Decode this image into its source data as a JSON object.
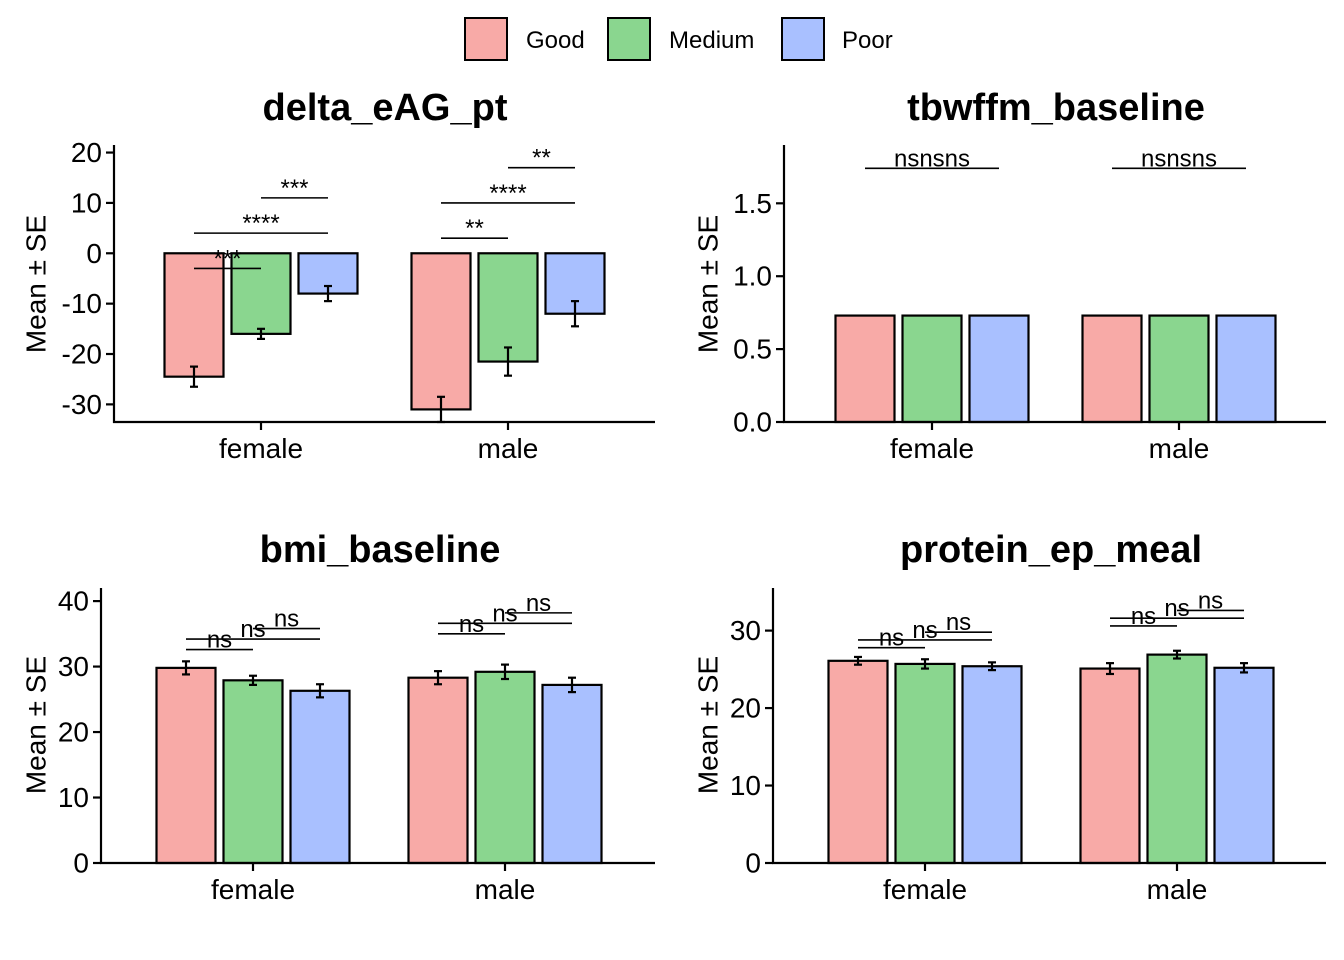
{
  "legend": {
    "items": [
      {
        "label": "Good",
        "color": "#F8AAA7"
      },
      {
        "label": "Medium",
        "color": "#8AD68F"
      },
      {
        "label": "Poor",
        "color": "#A9C0FF"
      }
    ]
  },
  "chart_data": [
    {
      "type": "bar",
      "title": "delta_eAG_pt",
      "ylabel": "Mean ± SE",
      "xlabel": "",
      "categories": [
        "female",
        "male"
      ],
      "ylim": [
        -33.5,
        21.5
      ],
      "yticks": [
        -30,
        -20,
        -10,
        0,
        10,
        20
      ],
      "series": [
        {
          "name": "Good",
          "values": [
            -24.5,
            -31
          ],
          "se": [
            2,
            2.5
          ]
        },
        {
          "name": "Medium",
          "values": [
            -16,
            -21.5
          ],
          "se": [
            1,
            2.8
          ]
        },
        {
          "name": "Poor",
          "values": [
            -8,
            -12
          ],
          "se": [
            1.5,
            2.5
          ]
        }
      ],
      "annotations": [
        {
          "cat": 0,
          "from": 0,
          "to": 1,
          "y": -3,
          "label": "***"
        },
        {
          "cat": 0,
          "from": 0,
          "to": 2,
          "y": 4,
          "label": "****"
        },
        {
          "cat": 0,
          "from": 1,
          "to": 2,
          "y": 11,
          "label": "***"
        },
        {
          "cat": 1,
          "from": 0,
          "to": 1,
          "y": 3,
          "label": "**"
        },
        {
          "cat": 1,
          "from": 0,
          "to": 2,
          "y": 10,
          "label": "****"
        },
        {
          "cat": 1,
          "from": 1,
          "to": 2,
          "y": 17,
          "label": "**"
        }
      ]
    },
    {
      "type": "bar",
      "title": "tbwffm_baseline",
      "ylabel": "Mean ± SE",
      "xlabel": "",
      "categories": [
        "female",
        "male"
      ],
      "ylim": [
        0,
        1.9
      ],
      "yticks": [
        0.0,
        0.5,
        1.0,
        1.5
      ],
      "yticklabels": [
        "0.0",
        "0.5",
        "1.0",
        "1.5"
      ],
      "series": [
        {
          "name": "Good",
          "values": [
            0.73,
            0.73
          ],
          "se": [
            0,
            0
          ]
        },
        {
          "name": "Medium",
          "values": [
            0.73,
            0.73
          ],
          "se": [
            0,
            0
          ]
        },
        {
          "name": "Poor",
          "values": [
            0.73,
            0.73
          ],
          "se": [
            0,
            0
          ]
        }
      ],
      "annotations": [
        {
          "cat": 0,
          "from": 0,
          "to": 2,
          "y": 1.74,
          "label": "nsnsns"
        },
        {
          "cat": 1,
          "from": 0,
          "to": 2,
          "y": 1.74,
          "label": "nsnsns"
        }
      ]
    },
    {
      "type": "bar",
      "title": "bmi_baseline",
      "ylabel": "Mean ± SE",
      "xlabel": "",
      "categories": [
        "female",
        "male"
      ],
      "ylim": [
        0,
        42
      ],
      "yticks": [
        0,
        10,
        20,
        30,
        40
      ],
      "series": [
        {
          "name": "Good",
          "values": [
            29.8,
            28.3
          ],
          "se": [
            1.0,
            1.0
          ]
        },
        {
          "name": "Medium",
          "values": [
            27.9,
            29.2
          ],
          "se": [
            0.7,
            1.1
          ]
        },
        {
          "name": "Poor",
          "values": [
            26.3,
            27.2
          ],
          "se": [
            1.0,
            1.1
          ]
        }
      ],
      "annotations": [
        {
          "cat": 0,
          "from": 0,
          "to": 1,
          "y": 32.6,
          "label": "ns"
        },
        {
          "cat": 0,
          "from": 0,
          "to": 2,
          "y": 34.2,
          "label": "ns"
        },
        {
          "cat": 0,
          "from": 1,
          "to": 2,
          "y": 35.8,
          "label": "ns"
        },
        {
          "cat": 1,
          "from": 0,
          "to": 1,
          "y": 35.0,
          "label": "ns"
        },
        {
          "cat": 1,
          "from": 0,
          "to": 2,
          "y": 36.6,
          "label": "ns"
        },
        {
          "cat": 1,
          "from": 1,
          "to": 2,
          "y": 38.2,
          "label": "ns"
        }
      ]
    },
    {
      "type": "bar",
      "title": "protein_ep_meal",
      "ylabel": "Mean ± SE",
      "xlabel": "",
      "categories": [
        "female",
        "male"
      ],
      "ylim": [
        0,
        35.5
      ],
      "yticks": [
        0,
        10,
        20,
        30
      ],
      "series": [
        {
          "name": "Good",
          "values": [
            26.1,
            25.1
          ],
          "se": [
            0.5,
            0.7
          ]
        },
        {
          "name": "Medium",
          "values": [
            25.7,
            26.9
          ],
          "se": [
            0.6,
            0.5
          ]
        },
        {
          "name": "Poor",
          "values": [
            25.4,
            25.2
          ],
          "se": [
            0.5,
            0.6
          ]
        }
      ],
      "annotations": [
        {
          "cat": 0,
          "from": 0,
          "to": 1,
          "y": 27.8,
          "label": "ns"
        },
        {
          "cat": 0,
          "from": 0,
          "to": 2,
          "y": 28.8,
          "label": "ns"
        },
        {
          "cat": 0,
          "from": 1,
          "to": 2,
          "y": 29.8,
          "label": "ns"
        },
        {
          "cat": 1,
          "from": 0,
          "to": 1,
          "y": 30.6,
          "label": "ns"
        },
        {
          "cat": 1,
          "from": 0,
          "to": 2,
          "y": 31.6,
          "label": "ns"
        },
        {
          "cat": 1,
          "from": 1,
          "to": 2,
          "y": 32.6,
          "label": "ns"
        }
      ]
    }
  ]
}
